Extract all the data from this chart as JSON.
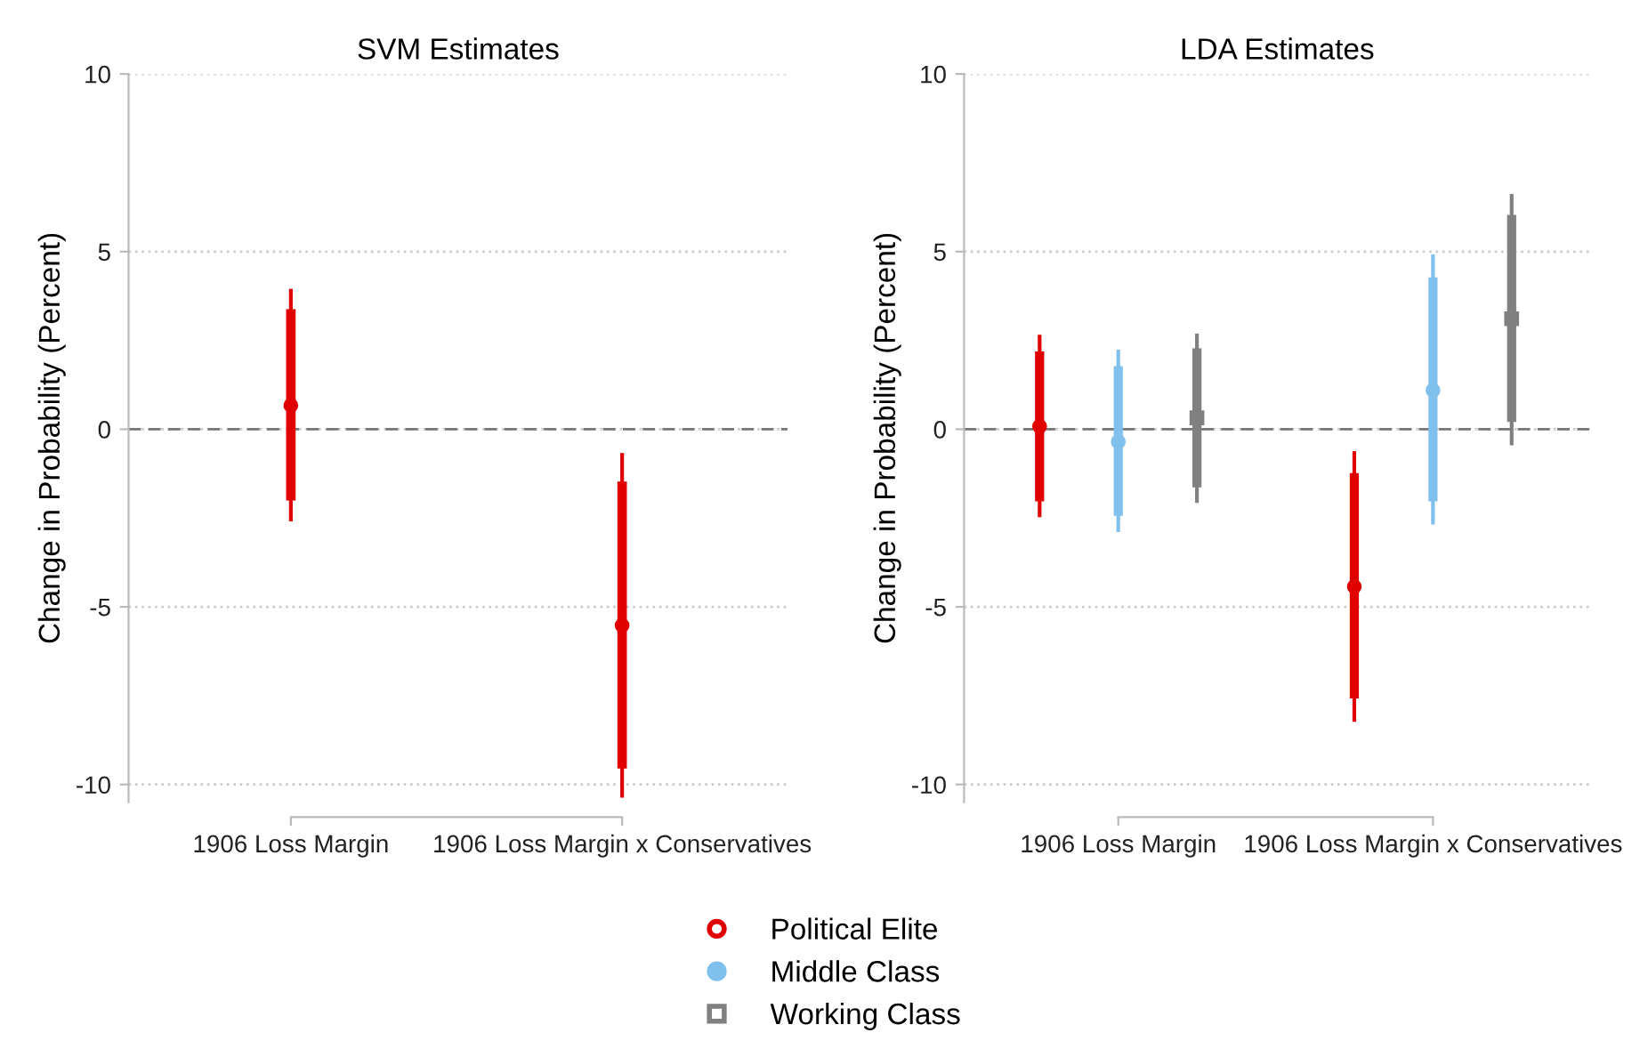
{
  "chart_data": [
    {
      "type": "box",
      "title": "SVM Estimates",
      "ylabel": "Change in Probability (Percent)",
      "categories": [
        "1906 Loss Margin",
        "1906 Loss Margin x Conservatives"
      ],
      "series": [
        {
          "color": "#e00000",
          "marker": "circle",
          "boxes": [
            {
              "low": -2.54,
              "q1": -1.99,
              "median": 0.67,
              "q3": 3.36,
              "high": 3.9
            },
            {
              "low": -10.32,
              "q1": -9.53,
              "median": -5.52,
              "q3": -1.49,
              "high": -0.72
            }
          ]
        }
      ],
      "ylim": [
        -10.5,
        10
      ],
      "yticks": [
        -10,
        -5,
        0,
        5,
        10
      ],
      "grid": "y",
      "ref_lines": [
        {
          "axis": "y",
          "value": 0,
          "color": "#777777",
          "line_style": "dashed"
        }
      ]
    },
    {
      "type": "box",
      "title": "LDA Estimates",
      "ylabel": "Change in Probability (Percent)",
      "categories": [
        "1906 Loss Margin",
        "1906 Loss Margin x Conservatives"
      ],
      "series": [
        {
          "name": "Political Elite",
          "color": "#e00000",
          "marker": "circle",
          "boxes": [
            {
              "low": -2.42,
              "q1": -2.01,
              "median": 0.08,
              "q3": 2.17,
              "high": 2.61
            },
            {
              "low": -8.18,
              "q1": -7.56,
              "median": -4.43,
              "q3": -1.25,
              "high": -0.67
            }
          ]
        },
        {
          "name": "Middle Class",
          "color": "#80c0ec",
          "marker": "circle",
          "boxes": [
            {
              "low": -2.84,
              "q1": -2.42,
              "median": -0.35,
              "q3": 1.76,
              "high": 2.19
            },
            {
              "low": -2.63,
              "q1": -2.01,
              "median": 1.1,
              "q3": 4.26,
              "high": 4.87
            }
          ]
        },
        {
          "name": "Working Class",
          "color": "#808080",
          "marker": "square",
          "boxes": [
            {
              "low": -2.02,
              "q1": -1.62,
              "median": 0.32,
              "q3": 2.26,
              "high": 2.64
            },
            {
              "low": -0.4,
              "q1": 0.22,
              "median": 3.11,
              "q3": 6.02,
              "high": 6.57
            }
          ]
        }
      ],
      "ylim": [
        -10.5,
        10
      ],
      "yticks": [
        -10,
        -5,
        0,
        5,
        10
      ],
      "grid": "y",
      "legend": "bottom",
      "ref_lines": [
        {
          "axis": "y",
          "value": 0,
          "color": "#777777",
          "line_style": "dashed"
        }
      ]
    }
  ]
}
